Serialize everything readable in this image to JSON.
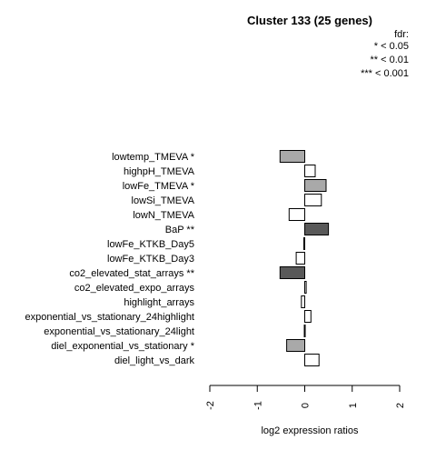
{
  "chart_data": {
    "type": "bar",
    "orientation": "horizontal",
    "title": "Cluster 133 (25 genes)",
    "xlabel": "log2 expression ratios",
    "xlim": [
      -2,
      2
    ],
    "xticks": [
      "-2",
      "-1",
      "0",
      "1",
      "2"
    ],
    "legend": {
      "title": "fdr:",
      "entries": [
        "* < 0.05",
        "** < 0.01",
        "*** < 0.001"
      ],
      "position": "top-right"
    },
    "categories": [
      "lowtemp_TMEVA *",
      "highpH_TMEVA",
      "lowFe_TMEVA *",
      "lowSi_TMEVA",
      "lowN_TMEVA",
      "BaP **",
      "lowFe_KTKB_Day5",
      "lowFe_KTKB_Day3",
      "co2_elevated_stat_arrays **",
      "co2_elevated_expo_arrays",
      "highlight_arrays",
      "exponential_vs_stationary_24highlight",
      "exponential_vs_stationary_24light",
      "diel_exponential_vs_stationary *",
      "diel_light_vs_dark"
    ],
    "values": [
      -0.52,
      0.22,
      0.45,
      0.35,
      -0.33,
      0.5,
      -0.02,
      -0.18,
      -0.52,
      0.03,
      -0.07,
      0.13,
      -0.01,
      -0.38,
      0.3
    ],
    "significance": [
      "*",
      "",
      "*",
      "",
      "",
      "**",
      "",
      "",
      "**",
      "",
      "",
      "",
      "",
      "*",
      ""
    ],
    "colors": {
      "none": "#ffffff",
      "*": "#a9a9a9",
      "**": "#595959",
      "***": "#1a1a1a",
      "stroke": "#000000"
    },
    "grid": false
  }
}
